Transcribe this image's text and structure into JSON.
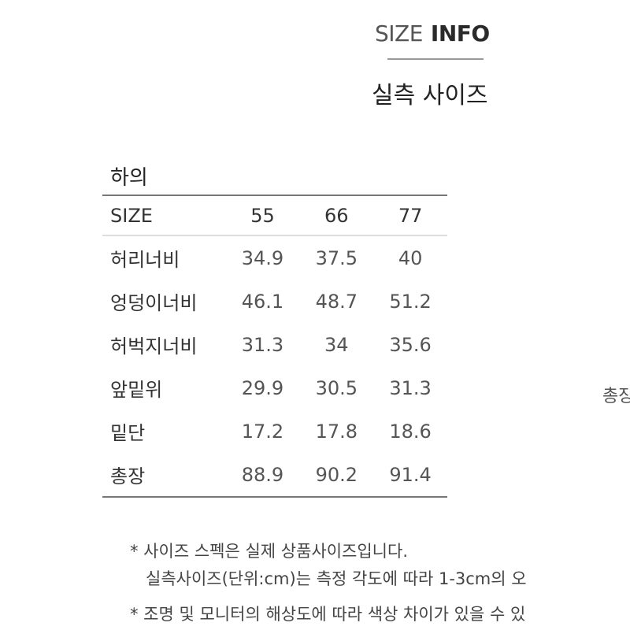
{
  "header": {
    "title_light": "SIZE",
    "title_bold": "INFO",
    "subtitle": "실측 사이즈"
  },
  "category": "하의",
  "table": {
    "columns": [
      "SIZE",
      "55",
      "66",
      "77"
    ],
    "rows": [
      {
        "label": "허리너비",
        "values": [
          "34.9",
          "37.5",
          "40"
        ]
      },
      {
        "label": "엉덩이너비",
        "values": [
          "46.1",
          "48.7",
          "51.2"
        ]
      },
      {
        "label": "허벅지너비",
        "values": [
          "31.3",
          "34",
          "35.6"
        ]
      },
      {
        "label": "앞밑위",
        "values": [
          "29.9",
          "30.5",
          "31.3"
        ]
      },
      {
        "label": "밑단",
        "values": [
          "17.2",
          "17.8",
          "18.6"
        ]
      },
      {
        "label": "총장",
        "values": [
          "88.9",
          "90.2",
          "91.4"
        ]
      }
    ]
  },
  "side_label": "총장",
  "notes": [
    "* 사이즈 스펙은 실제 상품사이즈입니다.",
    "실측사이즈(단위:cm)는 측정 각도에 따라 1-3cm의 오",
    "* 조명 및 모니터의 해상도에 따라 색상 차이가 있을 수 있"
  ]
}
